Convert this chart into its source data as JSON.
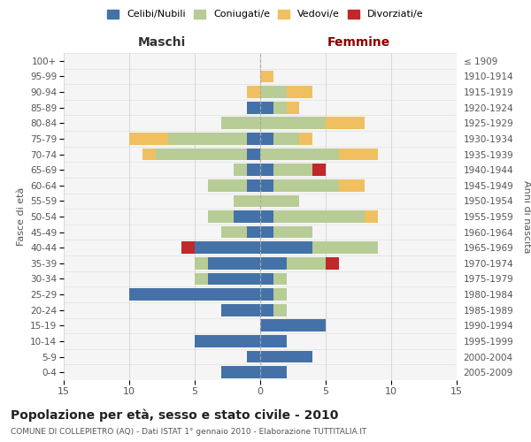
{
  "age_groups": [
    "0-4",
    "5-9",
    "10-14",
    "15-19",
    "20-24",
    "25-29",
    "30-34",
    "35-39",
    "40-44",
    "45-49",
    "50-54",
    "55-59",
    "60-64",
    "65-69",
    "70-74",
    "75-79",
    "80-84",
    "85-89",
    "90-94",
    "95-99",
    "100+"
  ],
  "birth_years": [
    "2005-2009",
    "2000-2004",
    "1995-1999",
    "1990-1994",
    "1985-1989",
    "1980-1984",
    "1975-1979",
    "1970-1974",
    "1965-1969",
    "1960-1964",
    "1955-1959",
    "1950-1954",
    "1945-1949",
    "1940-1944",
    "1935-1939",
    "1930-1934",
    "1925-1929",
    "1920-1924",
    "1915-1919",
    "1910-1914",
    "≤ 1909"
  ],
  "maschi": {
    "celibi": [
      3,
      1,
      5,
      0,
      3,
      10,
      4,
      4,
      5,
      1,
      2,
      0,
      1,
      1,
      1,
      1,
      0,
      1,
      0,
      0,
      0
    ],
    "coniugati": [
      0,
      0,
      0,
      0,
      0,
      0,
      1,
      1,
      0,
      2,
      2,
      2,
      3,
      1,
      7,
      6,
      3,
      0,
      0,
      0,
      0
    ],
    "vedovi": [
      0,
      0,
      0,
      0,
      0,
      0,
      0,
      0,
      0,
      0,
      0,
      0,
      0,
      0,
      1,
      3,
      0,
      0,
      1,
      0,
      0
    ],
    "divorziati": [
      0,
      0,
      0,
      0,
      0,
      0,
      0,
      0,
      1,
      0,
      0,
      0,
      0,
      0,
      0,
      0,
      0,
      0,
      0,
      0,
      0
    ]
  },
  "femmine": {
    "nubili": [
      2,
      4,
      2,
      5,
      1,
      1,
      1,
      2,
      4,
      1,
      1,
      0,
      1,
      1,
      0,
      1,
      0,
      1,
      0,
      0,
      0
    ],
    "coniugate": [
      0,
      0,
      0,
      0,
      1,
      1,
      1,
      3,
      5,
      3,
      7,
      3,
      5,
      3,
      6,
      2,
      5,
      1,
      2,
      0,
      0
    ],
    "vedove": [
      0,
      0,
      0,
      0,
      0,
      0,
      0,
      0,
      0,
      0,
      1,
      0,
      2,
      0,
      3,
      1,
      3,
      1,
      2,
      1,
      0
    ],
    "divorziate": [
      0,
      0,
      0,
      0,
      0,
      0,
      0,
      1,
      0,
      0,
      0,
      0,
      0,
      1,
      0,
      0,
      0,
      0,
      0,
      0,
      0
    ]
  },
  "colors": {
    "celibi": "#4472a8",
    "coniugati": "#b8cc96",
    "vedovi": "#f0c060",
    "divorziati": "#c0282a"
  },
  "title": "Popolazione per età, sesso e stato civile - 2010",
  "subtitle": "COMUNE DI COLLEPIETRO (AQ) - Dati ISTAT 1° gennaio 2010 - Elaborazione TUTTITALIA.IT",
  "xlabel_left": "Maschi",
  "xlabel_right": "Femmine",
  "ylabel_left": "Fasce di età",
  "ylabel_right": "Anni di nascita",
  "xlim": 15,
  "legend_labels": [
    "Celibi/Nubili",
    "Coniugati/e",
    "Vedovi/e",
    "Divorziati/e"
  ],
  "background_color": "#ffffff",
  "plot_bg": "#f5f5f5"
}
